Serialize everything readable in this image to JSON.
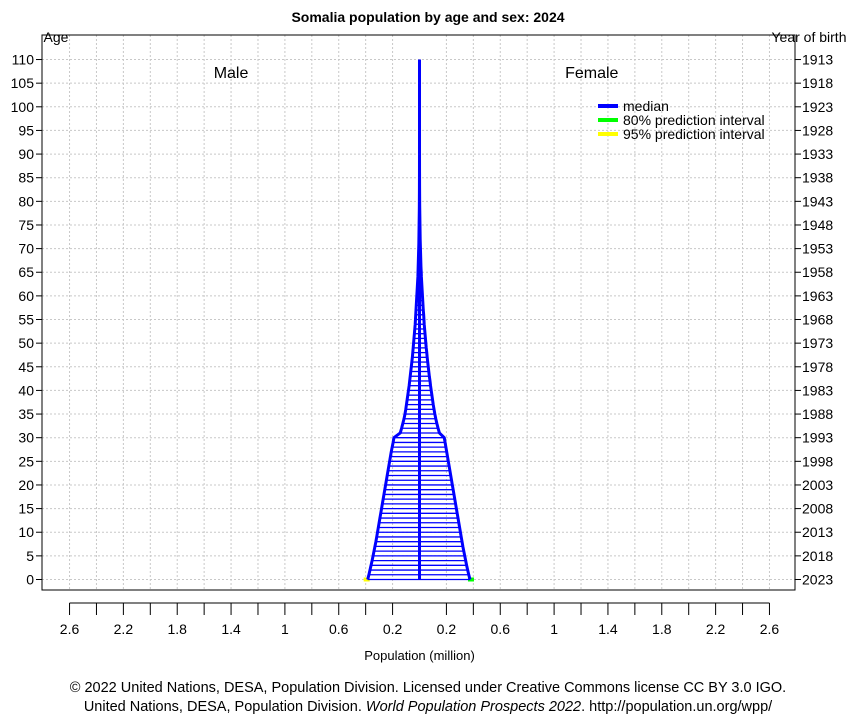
{
  "chart_data": {
    "type": "population-pyramid",
    "title": "Somalia population by age and sex: 2024",
    "left_axis_title": "Age",
    "right_axis_title": "Year of birth",
    "xlabel": "Population (million)",
    "male_label": "Male",
    "female_label": "Female",
    "age_ticks": [
      0,
      5,
      10,
      15,
      20,
      25,
      30,
      35,
      40,
      45,
      50,
      55,
      60,
      65,
      70,
      75,
      80,
      85,
      90,
      95,
      100,
      105,
      110
    ],
    "birth_year_ticks": [
      "2023",
      "2018",
      "2013",
      "2008",
      "2003",
      "1998",
      "1993",
      "1988",
      "1983",
      "1978",
      "1973",
      "1968",
      "1963",
      "1958",
      "1953",
      "1948",
      "1943",
      "1938",
      "1933",
      "1928",
      "1923",
      "1918",
      "1913"
    ],
    "x_tick_labels": [
      "2.6",
      "2.2",
      "1.8",
      "1.4",
      "1",
      "0.6",
      "0.2",
      "0.2",
      "0.6",
      "1",
      "1.4",
      "1.8",
      "2.2",
      "2.6"
    ],
    "x_range_million": [
      -2.6,
      2.6
    ],
    "legend": {
      "position": "top-right",
      "items": [
        {
          "label": "median",
          "color": "#0000ff"
        },
        {
          "label": "80% prediction interval",
          "color": "#00ff00"
        },
        {
          "label": "95% prediction interval",
          "color": "#ffff00"
        }
      ]
    },
    "series_note": "single-year ages 0-110, population in millions",
    "male": [
      0.385,
      0.376,
      0.368,
      0.36,
      0.352,
      0.345,
      0.338,
      0.331,
      0.324,
      0.318,
      0.312,
      0.306,
      0.3,
      0.294,
      0.288,
      0.282,
      0.276,
      0.27,
      0.264,
      0.258,
      0.252,
      0.246,
      0.24,
      0.234,
      0.228,
      0.222,
      0.216,
      0.21,
      0.203,
      0.196,
      0.19,
      0.143,
      0.133,
      0.124,
      0.115,
      0.108,
      0.102,
      0.097,
      0.092,
      0.087,
      0.082,
      0.077,
      0.073,
      0.069,
      0.065,
      0.061,
      0.057,
      0.053,
      0.05,
      0.047,
      0.044,
      0.041,
      0.038,
      0.035,
      0.032,
      0.03,
      0.028,
      0.026,
      0.024,
      0.022,
      0.02,
      0.018,
      0.016,
      0.014,
      0.012,
      0.011,
      0.01,
      0.009,
      0.008,
      0.007,
      0.006,
      0.005,
      0.0045,
      0.004,
      0.0035,
      0.003,
      0.0025,
      0.002,
      0.0015,
      0.0012,
      0.001,
      0.0008,
      0.0006,
      0.0005,
      0.0004,
      0.0003,
      0.0002,
      0.00015,
      0.0001,
      8e-05,
      6e-05,
      5e-05,
      4e-05,
      3e-05,
      2e-05,
      1.5e-05,
      1e-05,
      8e-06,
      6e-06,
      5e-06,
      4e-06,
      3e-06,
      2e-06,
      1.5e-06,
      1e-06,
      8e-07,
      6e-07,
      5e-07,
      4e-07,
      3e-07,
      2e-07
    ],
    "female": [
      0.375,
      0.366,
      0.358,
      0.35,
      0.343,
      0.336,
      0.329,
      0.322,
      0.316,
      0.31,
      0.304,
      0.298,
      0.292,
      0.286,
      0.28,
      0.274,
      0.268,
      0.262,
      0.256,
      0.25,
      0.244,
      0.238,
      0.232,
      0.226,
      0.22,
      0.214,
      0.208,
      0.202,
      0.196,
      0.19,
      0.184,
      0.148,
      0.138,
      0.129,
      0.121,
      0.114,
      0.108,
      0.102,
      0.097,
      0.092,
      0.087,
      0.082,
      0.078,
      0.073,
      0.069,
      0.065,
      0.061,
      0.057,
      0.054,
      0.05,
      0.047,
      0.044,
      0.041,
      0.038,
      0.035,
      0.033,
      0.031,
      0.028,
      0.026,
      0.024,
      0.022,
      0.02,
      0.018,
      0.016,
      0.014,
      0.013,
      0.011,
      0.01,
      0.009,
      0.008,
      0.007,
      0.006,
      0.005,
      0.0045,
      0.004,
      0.0035,
      0.003,
      0.0025,
      0.002,
      0.0015,
      0.0012,
      0.001,
      0.0008,
      0.0006,
      0.0005,
      0.0004,
      0.0003,
      0.0002,
      0.00015,
      0.0001,
      8e-05,
      6e-05,
      5e-05,
      4e-05,
      3e-05,
      2e-05,
      1.5e-05,
      1e-05,
      8e-06,
      6e-06,
      5e-06,
      4e-06,
      3e-06,
      2e-06,
      1.5e-06,
      1e-06,
      8e-07,
      6e-07,
      5e-07,
      4e-07,
      3e-07
    ]
  },
  "footer": {
    "line1": "© 2022 United Nations, DESA, Population Division. Licensed under Creative Commons license CC BY 3.0 IGO.",
    "line2_prefix": "United Nations, DESA, Population Division. ",
    "line2_italic": "World Population Prospects 2022",
    "line2_suffix": ". http://population.un.org/wpp/"
  }
}
